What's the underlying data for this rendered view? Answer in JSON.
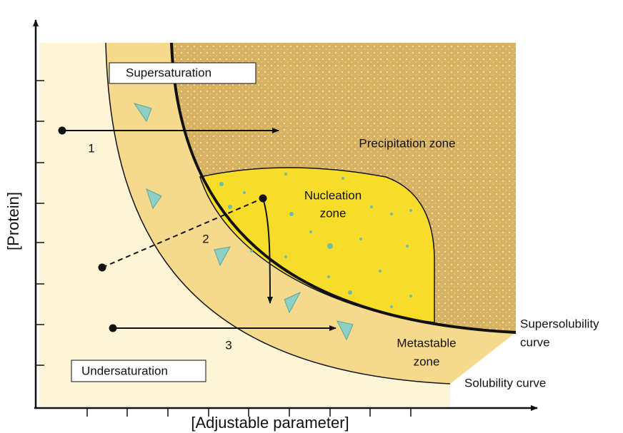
{
  "axes": {
    "y_label": "[Protein]",
    "x_label": "[Adjustable parameter]"
  },
  "regions": {
    "supersaturation": "Supersaturation",
    "undersaturation": "Undersaturation",
    "precipitation": "Precipitation zone",
    "nucleation": [
      "Nucleation",
      "zone"
    ],
    "metastable": [
      "Metastable",
      "zone"
    ]
  },
  "curves": {
    "supersolubility": [
      "Supersolubility",
      "curve"
    ],
    "solubility": "Solubility curve"
  },
  "paths": [
    "1",
    "2",
    "3"
  ]
}
